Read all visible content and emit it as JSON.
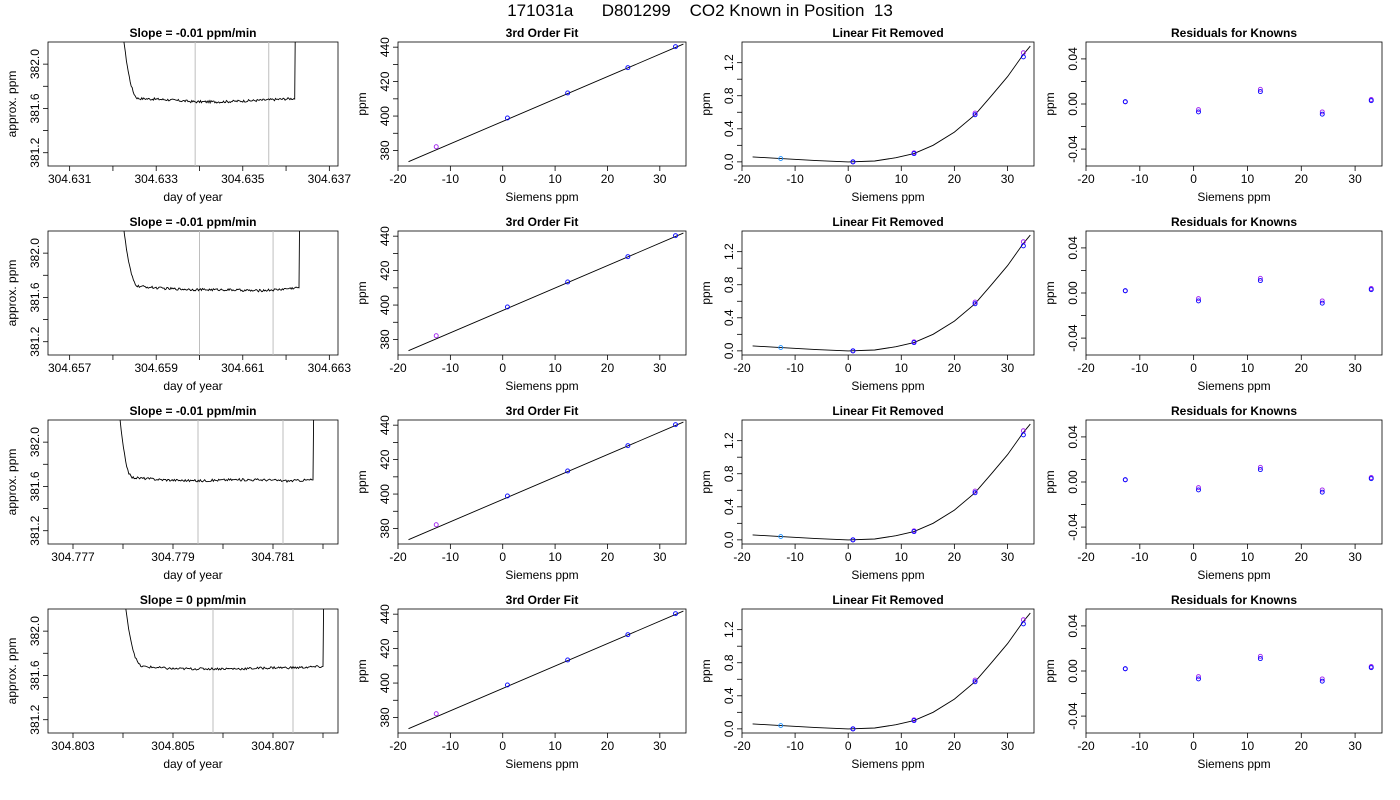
{
  "title": "171031a      D801299    CO2 Known in Position  13",
  "colors": {
    "trace": "#000000",
    "vline": "#bebebe",
    "point_blue": "#0000ff",
    "point_purple": "#a020f0",
    "point_light": "#1e90ff",
    "curve": "#000000"
  },
  "panel_rows": [
    {
      "time_panel": {
        "title": "Slope =  -0.01  ppm/min",
        "xlabel": "day of year",
        "ylabel": "approx. ppm",
        "xticks": [
          "304.631",
          "304.633",
          "304.635",
          "304.637"
        ],
        "yticks": [
          "381.2",
          "381.6",
          "382.0"
        ]
      },
      "fit_panel": {
        "title": "3rd Order Fit",
        "xlabel": "Siemens ppm",
        "ylabel": "ppm"
      },
      "linear_panel": {
        "title": "Linear Fit Removed",
        "xlabel": "Siemens ppm",
        "ylabel": "ppm"
      },
      "resid_panel": {
        "title": "Residuals for Knowns",
        "xlabel": "Siemens ppm",
        "ylabel": "ppm"
      }
    },
    {
      "time_panel": {
        "title": "Slope =  -0.01  ppm/min",
        "xlabel": "day of year",
        "ylabel": "approx. ppm",
        "xticks": [
          "304.657",
          "304.659",
          "304.661",
          "304.663"
        ],
        "yticks": [
          "381.2",
          "381.6",
          "382.0"
        ]
      },
      "fit_panel": {
        "title": "3rd Order Fit",
        "xlabel": "Siemens ppm",
        "ylabel": "ppm"
      },
      "linear_panel": {
        "title": "Linear Fit Removed",
        "xlabel": "Siemens ppm",
        "ylabel": "ppm"
      },
      "resid_panel": {
        "title": "Residuals for Knowns",
        "xlabel": "Siemens ppm",
        "ylabel": "ppm"
      }
    },
    {
      "time_panel": {
        "title": "Slope =  -0.01  ppm/min",
        "xlabel": "day of year",
        "ylabel": "approx. ppm",
        "xticks": [
          "304.777",
          "304.779",
          "304.781"
        ],
        "yticks": [
          "381.2",
          "381.6",
          "382.0"
        ]
      },
      "fit_panel": {
        "title": "3rd Order Fit",
        "xlabel": "Siemens ppm",
        "ylabel": "ppm"
      },
      "linear_panel": {
        "title": "Linear Fit Removed",
        "xlabel": "Siemens ppm",
        "ylabel": "ppm"
      },
      "resid_panel": {
        "title": "Residuals for Knowns",
        "xlabel": "Siemens ppm",
        "ylabel": "ppm"
      }
    },
    {
      "time_panel": {
        "title": "Slope =  0  ppm/min",
        "xlabel": "day of year",
        "ylabel": "approx. ppm",
        "xticks": [
          "304.803",
          "304.805",
          "304.807"
        ],
        "yticks": [
          "381.2",
          "381.6",
          "382.0"
        ]
      },
      "fit_panel": {
        "title": "3rd Order Fit",
        "xlabel": "Siemens ppm",
        "ylabel": "ppm"
      },
      "linear_panel": {
        "title": "Linear Fit Removed",
        "xlabel": "Siemens ppm",
        "ylabel": "ppm"
      },
      "resid_panel": {
        "title": "Residuals for Knowns",
        "xlabel": "Siemens ppm",
        "ylabel": "ppm"
      }
    }
  ],
  "chart_data": [
    {
      "type": "line",
      "row": 1,
      "title": "Slope =  -0.01  ppm/min",
      "xlabel": "day of year",
      "ylabel": "approx. ppm",
      "xlim": [
        304.6305,
        304.6372
      ],
      "ylim": [
        381.08,
        382.2
      ],
      "xticks": [
        304.631,
        304.632,
        304.633,
        304.634,
        304.635,
        304.636,
        304.637
      ],
      "yticks": [
        381.2,
        381.4,
        381.6,
        381.8,
        382.0
      ],
      "vlines": [
        304.6339,
        304.6356
      ],
      "x": [
        304.6322,
        304.6326,
        304.6332,
        304.6339,
        304.6345,
        304.6352,
        304.6357,
        304.6362
      ],
      "y": [
        382.4,
        381.69,
        381.68,
        381.66,
        381.66,
        381.67,
        381.68,
        381.69
      ]
    },
    {
      "type": "line",
      "row": 2,
      "title": "Slope =  -0.01  ppm/min",
      "xlabel": "day of year",
      "ylabel": "approx. ppm",
      "xlim": [
        304.6565,
        304.6632
      ],
      "ylim": [
        381.08,
        382.2
      ],
      "xticks": [
        304.657,
        304.658,
        304.659,
        304.66,
        304.661,
        304.662,
        304.663
      ],
      "yticks": [
        381.2,
        381.4,
        381.6,
        381.8,
        382.0
      ],
      "vlines": [
        304.66,
        304.6617
      ],
      "x": [
        304.6582,
        304.6586,
        304.6592,
        304.66,
        304.6606,
        304.6613,
        304.6618,
        304.6623
      ],
      "y": [
        382.4,
        381.7,
        381.68,
        381.67,
        381.67,
        381.66,
        381.67,
        381.69
      ]
    },
    {
      "type": "line",
      "row": 3,
      "title": "Slope =  -0.01  ppm/min",
      "xlabel": "day of year",
      "ylabel": "approx. ppm",
      "xlim": [
        304.7765,
        304.7823
      ],
      "ylim": [
        381.08,
        382.2
      ],
      "xticks": [
        304.777,
        304.778,
        304.779,
        304.78,
        304.781,
        304.782
      ],
      "yticks": [
        381.2,
        381.4,
        381.6,
        381.8,
        382.0
      ],
      "vlines": [
        304.7795,
        304.7812
      ],
      "x": [
        304.7779,
        304.7782,
        304.7788,
        304.7795,
        304.7801,
        304.7808,
        304.7813,
        304.7818
      ],
      "y": [
        382.4,
        381.68,
        381.66,
        381.65,
        381.66,
        381.66,
        381.65,
        381.66
      ]
    },
    {
      "type": "line",
      "row": 4,
      "title": "Slope =  0  ppm/min",
      "xlabel": "day of year",
      "ylabel": "approx. ppm",
      "xlim": [
        304.8025,
        304.8083
      ],
      "ylim": [
        381.08,
        382.2
      ],
      "xticks": [
        304.803,
        304.804,
        304.805,
        304.806,
        304.807,
        304.808
      ],
      "yticks": [
        381.2,
        381.4,
        381.6,
        381.8,
        382.0
      ],
      "vlines": [
        304.8058,
        304.8074
      ],
      "x": [
        304.804,
        304.8044,
        304.805,
        304.8058,
        304.8064,
        304.807,
        304.8075,
        304.808
      ],
      "y": [
        382.4,
        381.68,
        381.66,
        381.66,
        381.66,
        381.67,
        381.67,
        381.68
      ]
    },
    {
      "type": "scatter",
      "panel": "3rd Order Fit",
      "xlabel": "Siemens ppm",
      "ylabel": "ppm",
      "xlim": [
        -20,
        35
      ],
      "ylim": [
        371,
        443
      ],
      "xticks": [
        -20,
        -10,
        0,
        10,
        20,
        30
      ],
      "yticks": [
        380,
        390,
        400,
        410,
        420,
        430,
        440
      ],
      "fit_line": {
        "x": [
          -18,
          34.5
        ],
        "y": [
          373.5,
          441.8
        ]
      },
      "points": {
        "x": [
          -12.7,
          0.9,
          12.4,
          23.9,
          33.0
        ],
        "y": [
          382.2,
          398.9,
          413.4,
          428.1,
          440.3
        ]
      }
    },
    {
      "type": "scatter",
      "panel": "Linear Fit Removed",
      "xlabel": "Siemens ppm",
      "ylabel": "ppm",
      "xlim": [
        -20,
        35
      ],
      "ylim": [
        -0.05,
        1.45
      ],
      "xticks": [
        -20,
        -10,
        0,
        10,
        20,
        30
      ],
      "yticks": [
        0.0,
        0.2,
        0.4,
        0.6,
        0.8,
        1.0,
        1.2
      ],
      "curve": {
        "x": [
          -18,
          -12.7,
          -6,
          0,
          5,
          9,
          12.4,
          16,
          20,
          23.9,
          27,
          30,
          33,
          34.3
        ],
        "y": [
          0.06,
          0.04,
          0.015,
          0.0,
          0.01,
          0.05,
          0.1,
          0.2,
          0.36,
          0.57,
          0.8,
          1.03,
          1.3,
          1.4
        ]
      },
      "points_light": {
        "x": [
          -12.7
        ],
        "y": [
          0.04
        ]
      },
      "points_blue": {
        "x": [
          0.9,
          12.4,
          23.9,
          33.0
        ],
        "y": [
          0.0,
          0.1,
          0.57,
          1.27
        ]
      },
      "points_purple": {
        "x": [
          0.9,
          12.4,
          23.9,
          33.0
        ],
        "y": [
          0.0,
          0.11,
          0.59,
          1.32
        ]
      }
    },
    {
      "type": "scatter",
      "panel": "Residuals for Knowns",
      "xlabel": "Siemens ppm",
      "ylabel": "ppm",
      "xlim": [
        -20,
        35
      ],
      "ylim": [
        -0.055,
        0.055
      ],
      "xticks": [
        -20,
        -10,
        0,
        10,
        20,
        30
      ],
      "yticks": [
        -0.04,
        -0.02,
        0.0,
        0.02,
        0.04
      ],
      "points_blue": {
        "x": [
          -12.7,
          0.9,
          12.4,
          23.9,
          33.0
        ],
        "y": [
          0.002,
          -0.007,
          0.011,
          -0.009,
          0.003
        ]
      },
      "points_purple": {
        "x": [
          -12.7,
          0.9,
          12.4,
          23.9,
          33.0
        ],
        "y": [
          0.002,
          -0.005,
          0.013,
          -0.007,
          0.004
        ]
      }
    }
  ]
}
